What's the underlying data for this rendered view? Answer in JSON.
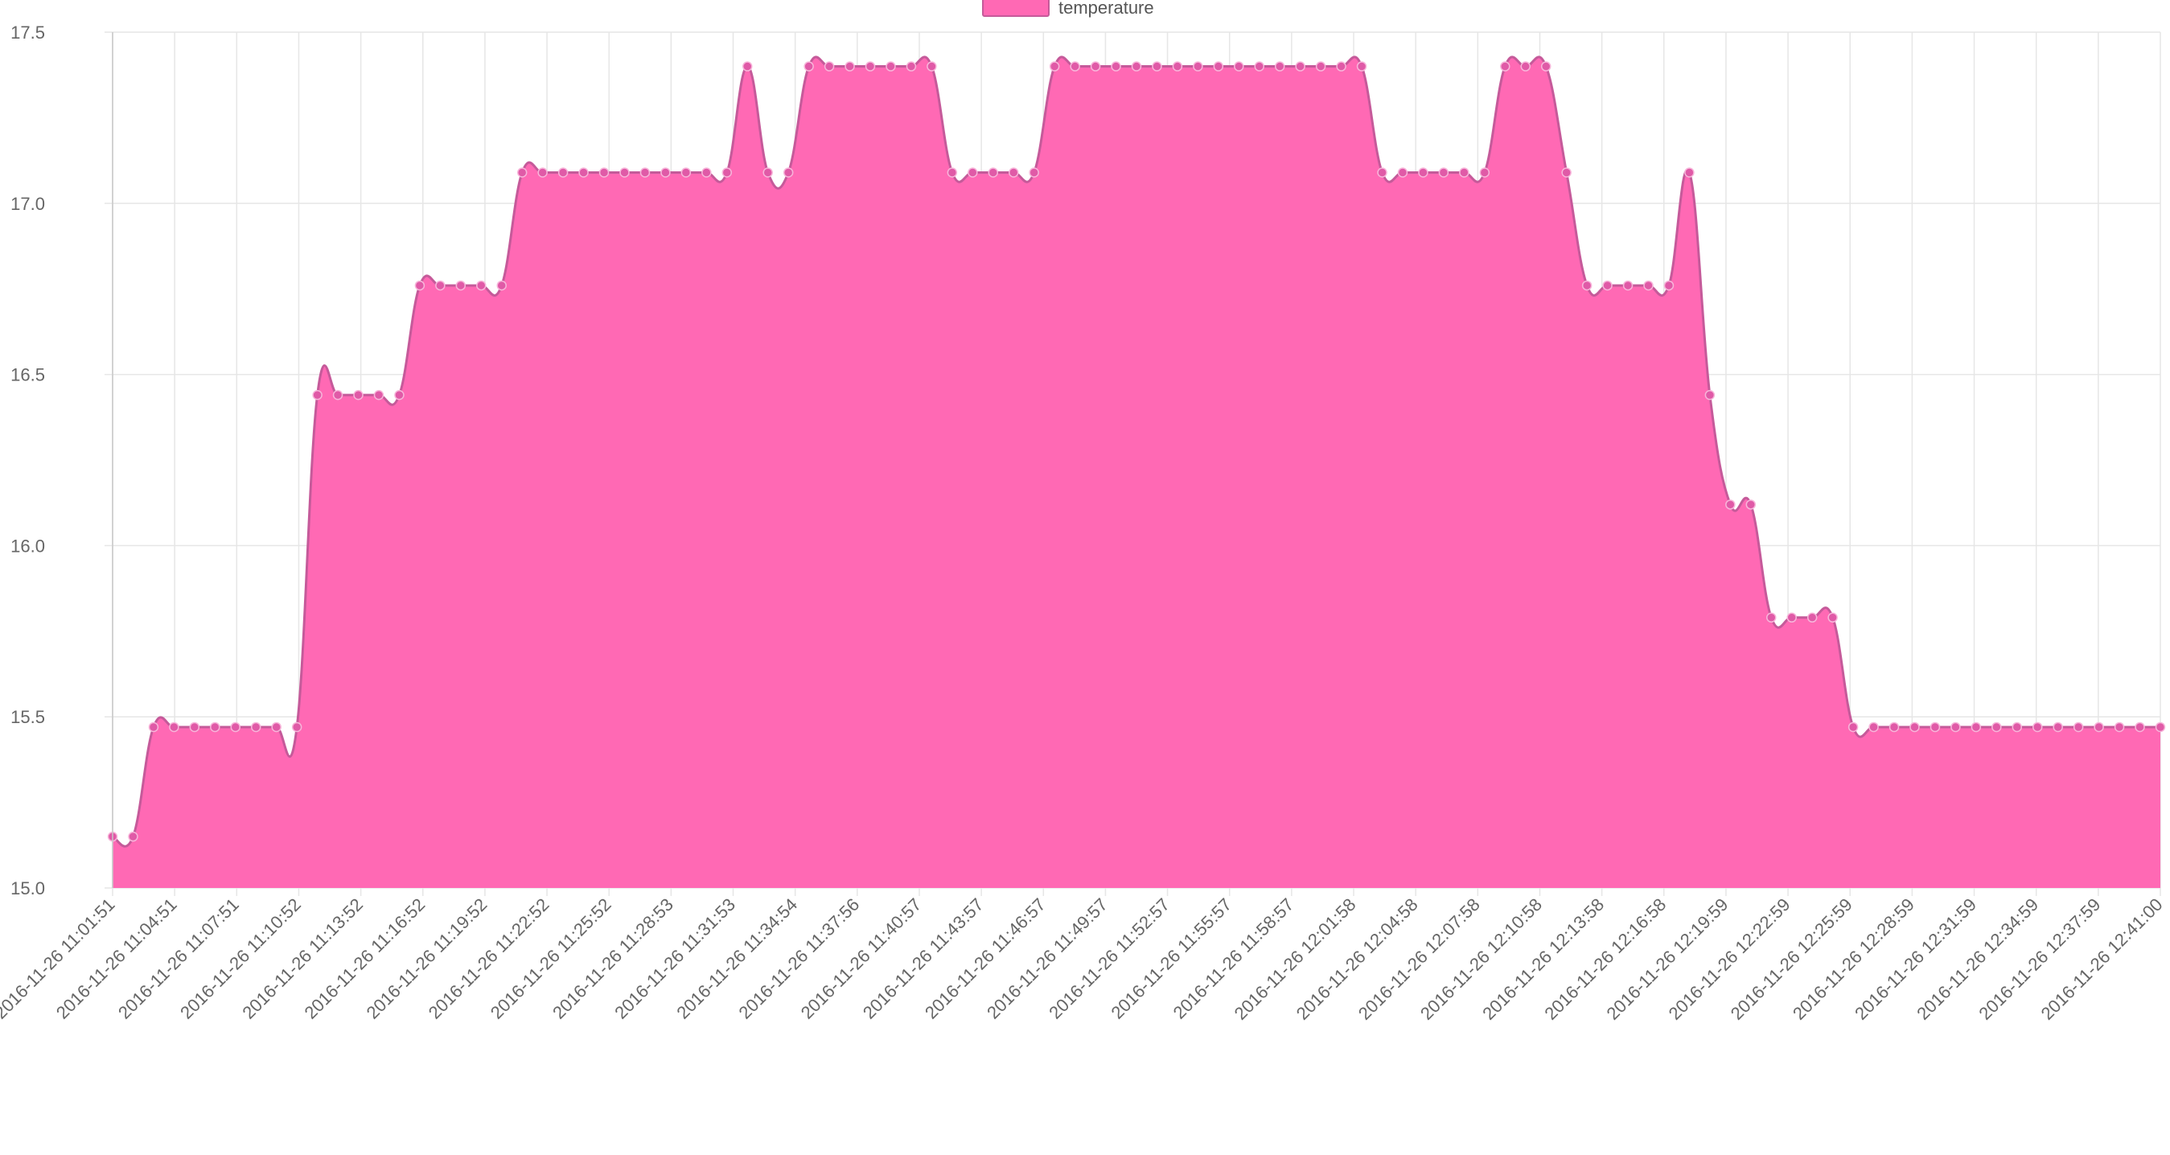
{
  "chart_data": {
    "type": "area",
    "legend": {
      "label": "temperature",
      "position": "top-center"
    },
    "series": [
      {
        "name": "temperature",
        "color": "#ff69b4",
        "stroke": "#c55a9a",
        "point_color": "#e05aa7",
        "values": [
          15.15,
          15.15,
          15.47,
          15.47,
          15.47,
          15.47,
          15.47,
          15.47,
          15.47,
          15.47,
          16.44,
          16.44,
          16.44,
          16.44,
          16.44,
          16.76,
          16.76,
          16.76,
          16.76,
          16.76,
          17.09,
          17.09,
          17.09,
          17.09,
          17.09,
          17.09,
          17.09,
          17.09,
          17.09,
          17.09,
          17.09,
          17.4,
          17.09,
          17.09,
          17.4,
          17.4,
          17.4,
          17.4,
          17.4,
          17.4,
          17.4,
          17.09,
          17.09,
          17.09,
          17.09,
          17.09,
          17.4,
          17.4,
          17.4,
          17.4,
          17.4,
          17.4,
          17.4,
          17.4,
          17.4,
          17.4,
          17.4,
          17.4,
          17.4,
          17.4,
          17.4,
          17.4,
          17.09,
          17.09,
          17.09,
          17.09,
          17.09,
          17.09,
          17.4,
          17.4,
          17.4,
          17.09,
          16.76,
          16.76,
          16.76,
          16.76,
          16.76,
          17.09,
          16.44,
          16.12,
          16.12,
          15.79,
          15.79,
          15.79,
          15.79,
          15.47,
          15.47,
          15.47,
          15.47,
          15.47,
          15.47,
          15.47,
          15.47,
          15.47,
          15.47,
          15.47,
          15.47,
          15.47,
          15.47,
          15.47,
          15.47
        ]
      }
    ],
    "x_tick_labels": [
      "2016-11-26 11:01:51",
      "2016-11-26 11:04:51",
      "2016-11-26 11:07:51",
      "2016-11-26 11:10:52",
      "2016-11-26 11:13:52",
      "2016-11-26 11:16:52",
      "2016-11-26 11:19:52",
      "2016-11-26 11:22:52",
      "2016-11-26 11:25:52",
      "2016-11-26 11:28:53",
      "2016-11-26 11:31:53",
      "2016-11-26 11:34:54",
      "2016-11-26 11:37:56",
      "2016-11-26 11:40:57",
      "2016-11-26 11:43:57",
      "2016-11-26 11:46:57",
      "2016-11-26 11:49:57",
      "2016-11-26 11:52:57",
      "2016-11-26 11:55:57",
      "2016-11-26 11:58:57",
      "2016-11-26 12:01:58",
      "2016-11-26 12:04:58",
      "2016-11-26 12:07:58",
      "2016-11-26 12:10:58",
      "2016-11-26 12:13:58",
      "2016-11-26 12:16:58",
      "2016-11-26 12:19:59",
      "2016-11-26 12:22:59",
      "2016-11-26 12:25:59",
      "2016-11-26 12:28:59",
      "2016-11-26 12:31:59",
      "2016-11-26 12:34:59",
      "2016-11-26 12:37:59",
      "2016-11-26 12:41:00"
    ],
    "y_ticks": [
      "17.5",
      "17.0",
      "16.5",
      "16.0",
      "15.5",
      "15.0"
    ],
    "ylim": [
      15.0,
      17.5
    ],
    "grid": true
  }
}
